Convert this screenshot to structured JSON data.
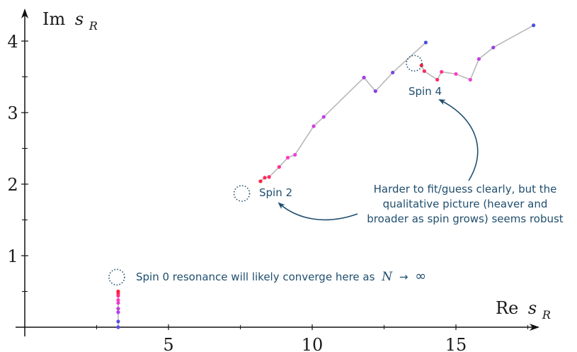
{
  "chart_data": {
    "type": "scatter",
    "xlabel_main": "Re",
    "xlabel_var": "s",
    "xlabel_sub": "R",
    "ylabel_main": "Im",
    "ylabel_var": "s",
    "ylabel_sub": "R",
    "xlim": [
      -0.2,
      18.1
    ],
    "ylim": [
      0,
      4.45
    ],
    "xticks": [
      5,
      10,
      15
    ],
    "yticks": [
      1,
      2,
      3,
      4
    ],
    "x_minor_ticks": [
      2.5,
      7.5,
      12.5,
      17.5
    ],
    "y_minor_ticks": [
      0.5,
      1.5,
      2.5,
      3.5
    ],
    "series": [
      {
        "points": [
          {
            "x": 3.25,
            "y": 0.0,
            "color": "#5a4fe0"
          },
          {
            "x": 3.25,
            "y": 0.08,
            "color": "#5a4fe0"
          },
          {
            "x": 3.25,
            "y": 0.21,
            "color": "#b23ce8"
          },
          {
            "x": 3.25,
            "y": 0.26,
            "color": "#c63fe0"
          },
          {
            "x": 3.25,
            "y": 0.34,
            "color": "#e23fd2"
          },
          {
            "x": 3.25,
            "y": 0.38,
            "color": "#ff3dc0"
          },
          {
            "x": 3.25,
            "y": 0.44,
            "color": "#ff3092"
          },
          {
            "x": 3.25,
            "y": 0.47,
            "color": "#ff2a6a"
          },
          {
            "x": 3.25,
            "y": 0.5,
            "color": "#ff1f3c"
          }
        ]
      },
      {
        "points": [
          {
            "x": 8.2,
            "y": 2.04,
            "color": "#ff1f3c"
          },
          {
            "x": 8.35,
            "y": 2.09,
            "color": "#ff2a5a"
          },
          {
            "x": 8.5,
            "y": 2.1,
            "color": "#ff2a6a"
          },
          {
            "x": 8.85,
            "y": 2.24,
            "color": "#ff3092"
          },
          {
            "x": 9.15,
            "y": 2.37,
            "color": "#ff3dc0"
          },
          {
            "x": 9.4,
            "y": 2.41,
            "color": "#f03fd8"
          },
          {
            "x": 10.05,
            "y": 2.81,
            "color": "#d23fe0"
          },
          {
            "x": 10.4,
            "y": 2.94,
            "color": "#c03fe6"
          },
          {
            "x": 11.8,
            "y": 3.49,
            "color": "#a53de8"
          },
          {
            "x": 12.2,
            "y": 3.3,
            "color": "#8a3de6"
          },
          {
            "x": 12.8,
            "y": 3.56,
            "color": "#7a46e4"
          },
          {
            "x": 13.95,
            "y": 3.98,
            "color": "#4a50e0"
          }
        ]
      },
      {
        "points": [
          {
            "x": 13.8,
            "y": 3.66,
            "color": "#ff1f3c"
          },
          {
            "x": 13.9,
            "y": 3.58,
            "color": "#ff2a5a"
          },
          {
            "x": 14.35,
            "y": 3.46,
            "color": "#ff2a6a"
          },
          {
            "x": 14.5,
            "y": 3.57,
            "color": "#ff3092"
          },
          {
            "x": 15.0,
            "y": 3.54,
            "color": "#ff3dc0"
          },
          {
            "x": 15.5,
            "y": 3.46,
            "color": "#f03fd8"
          },
          {
            "x": 15.8,
            "y": 3.75,
            "color": "#c63fe0"
          },
          {
            "x": 16.3,
            "y": 3.91,
            "color": "#9a3de6"
          },
          {
            "x": 17.7,
            "y": 4.22,
            "color": "#4a50e0"
          }
        ]
      }
    ],
    "markers": [
      {
        "label": "Spin 2",
        "x": 7.55,
        "y": 1.87
      },
      {
        "label": "Spin 4",
        "x": 13.55,
        "y": 3.69
      },
      {
        "label": "Spin 0 resonance will likely converge here as",
        "x": 3.2,
        "y": 0.7
      }
    ],
    "annotations": {
      "spin0_text": "Spin 0 resonance will likely converge here as",
      "spin0_math_N": "N",
      "spin0_math_arrow": "→",
      "spin0_math_inf": "∞",
      "spin2_label": "Spin 2",
      "spin4_label": "Spin 4",
      "note_line1": "Harder to fit/guess clearly, but the",
      "note_line2": "qualitative picture (heaver and",
      "note_line3": "broader as spin grows) seems robust"
    },
    "colors": {
      "axis": "#111111",
      "connector": "#b8b8b8",
      "annotation": "#1f4e6e"
    }
  }
}
